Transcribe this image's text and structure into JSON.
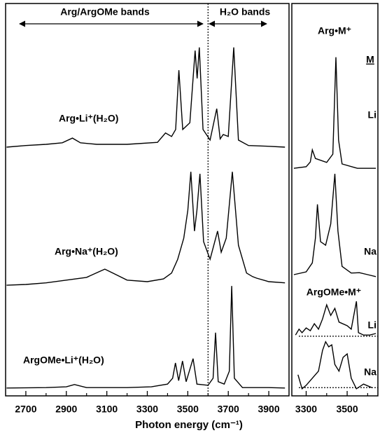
{
  "chart_data": [
    {
      "type": "line",
      "xlabel": "Photon energy (cm⁻¹)",
      "xlim": [
        2600,
        4000
      ],
      "ylim": [
        0,
        100
      ],
      "xticks": [
        2700,
        2900,
        3100,
        3300,
        3500,
        3700,
        3900
      ],
      "xminorticks": [
        2800,
        3000,
        3200,
        3400,
        3600,
        3800
      ],
      "color": "#000000",
      "divider_x": 3600,
      "annotations": [
        "Arg/ArgOMe bands",
        "H₂O bands"
      ],
      "series": [
        {
          "name": "Arg•Li⁺(H₂O)",
          "x": [
            2605,
            2700,
            2800,
            2880,
            2930,
            2970,
            3050,
            3200,
            3350,
            3390,
            3420,
            3440,
            3456,
            3475,
            3510,
            3536,
            3546,
            3557,
            3575,
            3610,
            3643,
            3660,
            3675,
            3700,
            3727,
            3750,
            3800,
            3900,
            3980
          ],
          "values": [
            63.4,
            63.8,
            64.1,
            64.5,
            65.7,
            64.5,
            64.1,
            64.1,
            64.6,
            67.0,
            66.1,
            67.9,
            83.0,
            67.9,
            69.6,
            88.0,
            80.9,
            88.8,
            67.9,
            65.2,
            73.2,
            65.5,
            66.6,
            66.1,
            88.8,
            65.2,
            63.8,
            63.6,
            63.4
          ]
        },
        {
          "name": "Arg•Na⁺(H₂O)",
          "x": [
            2605,
            2700,
            2800,
            2900,
            3000,
            3060,
            3090,
            3130,
            3200,
            3300,
            3380,
            3420,
            3450,
            3480,
            3500,
            3515,
            3533,
            3545,
            3560,
            3578,
            3610,
            3647,
            3665,
            3690,
            3720,
            3750,
            3790,
            3820,
            3840,
            3900,
            3980
          ],
          "values": [
            28.2,
            28.4,
            28.8,
            29.5,
            30.2,
            31.6,
            32.3,
            31.3,
            29.5,
            29.1,
            29.8,
            31.3,
            34.8,
            40.2,
            47.3,
            57.1,
            42.0,
            47.3,
            56.6,
            39.3,
            34.8,
            42.0,
            36.6,
            40.2,
            57.1,
            38.4,
            31.3,
            30.4,
            30.0,
            29.1,
            28.8
          ]
        },
        {
          "name": "ArgOMe•Li⁺(H₂O)",
          "x": [
            2605,
            2800,
            2900,
            2940,
            3000,
            3200,
            3320,
            3400,
            3425,
            3439,
            3455,
            3474,
            3492,
            3526,
            3545,
            3600,
            3625,
            3637,
            3650,
            3680,
            3705,
            3717,
            3730,
            3770,
            3900,
            3980
          ],
          "values": [
            2.0,
            2.1,
            2.3,
            2.9,
            2.1,
            2.1,
            2.3,
            3.0,
            4.5,
            8.4,
            3.9,
            8.9,
            3.6,
            9.5,
            3.0,
            2.7,
            4.5,
            16.1,
            3.6,
            3.0,
            6.3,
            28.0,
            4.5,
            2.1,
            2.1,
            2.0
          ]
        }
      ]
    },
    {
      "type": "line",
      "title": "Arg•M⁺",
      "subtitle": "ArgOMe•M⁺",
      "legend_header": "M",
      "xlim": [
        3230,
        3650
      ],
      "ylim": [
        0,
        100
      ],
      "xticks": [
        3300,
        3500
      ],
      "xminorticks": [
        3400,
        3600
      ],
      "color": "#000000",
      "baselines": [
        15.2,
        2.1
      ],
      "series": [
        {
          "name": "Li",
          "x": [
            3240,
            3300,
            3320,
            3330,
            3345,
            3400,
            3430,
            3445,
            3458,
            3475,
            3550,
            3640
          ],
          "values": [
            58.0,
            58.4,
            59.6,
            62.7,
            60.5,
            59.5,
            61.6,
            86.3,
            65.2,
            59.1,
            58.0,
            58.0
          ]
        },
        {
          "name": "Na",
          "x": [
            3240,
            3300,
            3330,
            3345,
            3355,
            3370,
            3395,
            3420,
            3440,
            3455,
            3475,
            3520,
            3560,
            3600,
            3640
          ],
          "values": [
            30.9,
            31.6,
            33.9,
            40.2,
            48.8,
            39.3,
            38.4,
            43.8,
            56.6,
            42.0,
            33.0,
            31.3,
            31.4,
            30.9,
            30.4
          ]
        },
        {
          "name": "Li",
          "x": [
            3248,
            3265,
            3280,
            3300,
            3320,
            3340,
            3360,
            3380,
            3400,
            3420,
            3440,
            3460,
            3500,
            3520,
            3545,
            3555,
            3580,
            3610,
            3640
          ],
          "values": [
            15.5,
            17.0,
            16.1,
            17.3,
            16.6,
            18.4,
            17.0,
            19.6,
            23.2,
            20.5,
            22.3,
            18.8,
            17.9,
            17.0,
            24.1,
            16.1,
            15.5,
            15.5,
            15.9
          ]
        },
        {
          "name": "Na",
          "x": [
            3260,
            3280,
            3300,
            3330,
            3360,
            3380,
            3395,
            3410,
            3425,
            3440,
            3460,
            3480,
            3500,
            3520,
            3545,
            3580,
            3620
          ],
          "values": [
            5.4,
            1.8,
            2.7,
            4.5,
            6.3,
            11.6,
            13.8,
            12.5,
            13.0,
            8.0,
            6.3,
            9.8,
            10.7,
            4.5,
            1.8,
            3.0,
            2.1
          ]
        }
      ]
    }
  ]
}
